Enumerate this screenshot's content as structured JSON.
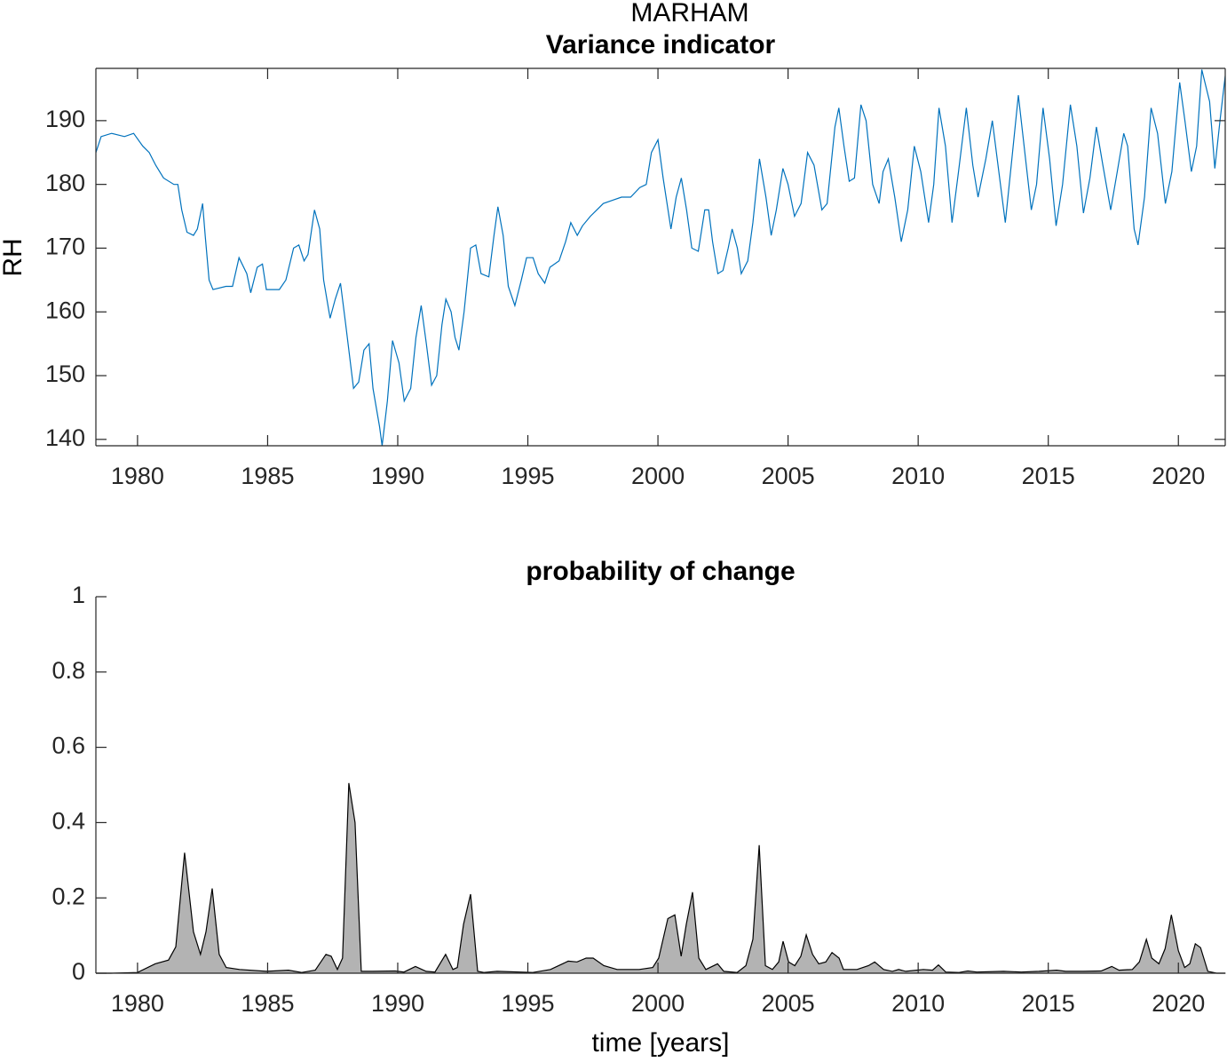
{
  "chart_data": [
    {
      "type": "line",
      "supertitle": "MARHAM",
      "title": "Variance indicator",
      "ylabel": "RH",
      "color": "#0072bd",
      "box": true,
      "xlim": [
        1978.4,
        2021.8
      ],
      "ylim": [
        139,
        198.2
      ],
      "xticks": [
        1980,
        1985,
        1990,
        1995,
        2000,
        2005,
        2010,
        2015,
        2020
      ],
      "yticks": [
        140,
        150,
        160,
        170,
        180,
        190
      ],
      "x": [
        1978.4,
        1978.6,
        1979.0,
        1979.5,
        1979.85,
        1980.2,
        1980.45,
        1980.7,
        1981.0,
        1981.4,
        1981.55,
        1981.7,
        1981.9,
        1982.15,
        1982.3,
        1982.5,
        1982.6,
        1982.75,
        1982.9,
        1983.4,
        1983.65,
        1983.9,
        1984.2,
        1984.35,
        1984.6,
        1984.8,
        1984.95,
        1985.45,
        1985.7,
        1986.0,
        1986.2,
        1986.4,
        1986.55,
        1986.8,
        1987.0,
        1987.15,
        1987.4,
        1987.6,
        1987.8,
        1988.0,
        1988.3,
        1988.5,
        1988.7,
        1988.9,
        1989.05,
        1989.3,
        1989.4,
        1989.6,
        1989.8,
        1990.05,
        1990.25,
        1990.5,
        1990.7,
        1990.9,
        1991.1,
        1991.3,
        1991.5,
        1991.7,
        1991.85,
        1992.05,
        1992.2,
        1992.35,
        1992.55,
        1992.8,
        1993.0,
        1993.2,
        1993.5,
        1993.7,
        1993.85,
        1994.05,
        1994.25,
        1994.5,
        1994.75,
        1994.95,
        1995.2,
        1995.4,
        1995.65,
        1995.85,
        1996.2,
        1996.45,
        1996.65,
        1996.9,
        1997.1,
        1997.4,
        1997.65,
        1997.9,
        1998.25,
        1998.6,
        1998.95,
        1999.3,
        1999.55,
        1999.75,
        2000.0,
        2000.2,
        2000.35,
        2000.5,
        2000.7,
        2000.9,
        2001.1,
        2001.3,
        2001.55,
        2001.8,
        2001.95,
        2002.1,
        2002.3,
        2002.5,
        2002.7,
        2002.85,
        2003.05,
        2003.2,
        2003.45,
        2003.65,
        2003.9,
        2004.15,
        2004.35,
        2004.55,
        2004.8,
        2005.0,
        2005.25,
        2005.5,
        2005.75,
        2006.0,
        2006.3,
        2006.5,
        2006.8,
        2006.95,
        2007.15,
        2007.35,
        2007.55,
        2007.8,
        2008.0,
        2008.25,
        2008.5,
        2008.65,
        2008.85,
        2009.1,
        2009.35,
        2009.6,
        2009.85,
        2010.1,
        2010.4,
        2010.6,
        2010.8,
        2011.05,
        2011.3,
        2011.55,
        2011.85,
        2012.1,
        2012.3,
        2012.6,
        2012.85,
        2013.1,
        2013.35,
        2013.6,
        2013.85,
        2014.1,
        2014.35,
        2014.55,
        2014.8,
        2015.05,
        2015.3,
        2015.55,
        2015.85,
        2016.1,
        2016.35,
        2016.6,
        2016.85,
        2017.1,
        2017.4,
        2017.65,
        2017.9,
        2018.05,
        2018.3,
        2018.45,
        2018.7,
        2018.95,
        2019.2,
        2019.5,
        2019.75,
        2020.05,
        2020.25,
        2020.5,
        2020.7,
        2020.9,
        2021.2,
        2021.4,
        2021.6,
        2021.8
      ],
      "values": [
        185,
        187.5,
        188,
        187.5,
        188,
        186,
        185,
        183,
        181,
        180,
        180,
        176,
        172.5,
        172,
        173,
        177,
        172,
        165,
        163.5,
        164,
        164,
        168.5,
        166,
        163,
        167,
        167.5,
        163.5,
        163.5,
        165,
        170,
        170.5,
        168,
        169,
        176,
        173,
        165,
        159,
        162,
        164.5,
        158,
        148,
        149,
        154,
        155,
        148,
        142,
        139,
        146,
        155.5,
        152,
        146,
        148,
        156,
        161,
        155,
        148.5,
        150,
        158,
        162,
        160,
        156,
        154,
        160,
        170,
        170.5,
        166,
        165.5,
        172,
        176.5,
        172,
        164,
        161,
        165,
        168.5,
        168.5,
        166,
        164.5,
        167,
        168,
        171,
        174,
        172,
        173.5,
        175,
        176,
        177,
        177.5,
        178,
        178,
        179.5,
        180,
        185,
        187,
        181,
        177,
        173,
        178,
        181,
        176,
        170,
        169.5,
        176,
        176,
        171,
        166,
        166.5,
        170,
        173,
        170,
        166,
        168,
        174,
        184,
        178,
        172,
        176,
        182.5,
        180,
        175,
        177,
        185,
        183,
        176,
        177,
        189,
        192,
        186,
        180.5,
        181,
        192.5,
        190,
        180,
        177,
        182,
        184,
        178,
        171,
        176,
        186,
        182,
        174,
        180,
        192,
        186,
        174,
        182,
        192,
        183,
        178,
        184,
        190,
        182,
        174,
        184,
        194,
        185,
        176,
        180,
        192,
        184,
        173.5,
        180,
        192.5,
        186,
        175.5,
        181,
        189,
        183,
        176,
        182,
        188,
        186,
        173,
        170.5,
        178,
        192,
        188,
        177,
        182,
        196,
        190,
        182,
        186,
        198,
        193,
        182.5,
        190,
        197
      ]
    },
    {
      "type": "area",
      "title": "probability of change",
      "xlabel": "time [years]",
      "color": "#b3b3b3",
      "edgecolor": "#000000",
      "box": false,
      "xlim": [
        1978.4,
        2021.8
      ],
      "ylim": [
        0,
        1
      ],
      "xticks": [
        1980,
        1985,
        1990,
        1995,
        2000,
        2005,
        2010,
        2015,
        2020
      ],
      "yticks": [
        0,
        0.2,
        0.4,
        0.6,
        0.8,
        1
      ],
      "x": [
        1978.4,
        1978.98,
        1980,
        1980.68,
        1981.19,
        1981.47,
        1981.81,
        1982.15,
        1982.42,
        1982.63,
        1982.87,
        1983.14,
        1983.41,
        1983.92,
        1984.95,
        1985.8,
        1986.31,
        1986.83,
        1987.24,
        1987.44,
        1987.68,
        1987.88,
        1988.12,
        1988.36,
        1988.6,
        1989.04,
        1989.9,
        1990.24,
        1990.68,
        1991.09,
        1991.43,
        1991.84,
        1992.12,
        1992.29,
        1992.53,
        1992.8,
        1993.07,
        1993.31,
        1993.82,
        1995.19,
        1995.87,
        1996.55,
        1996.89,
        1997.24,
        1997.51,
        1997.92,
        1998.43,
        1999.28,
        1999.8,
        2000.03,
        2000.38,
        2000.65,
        2000.89,
        2001.09,
        2001.33,
        2001.57,
        2001.84,
        2002.29,
        2002.53,
        2003.04,
        2003.38,
        2003.65,
        2003.89,
        2004.13,
        2004.4,
        2004.64,
        2004.81,
        2005.02,
        2005.26,
        2005.49,
        2005.7,
        2005.94,
        2006.18,
        2006.45,
        2006.69,
        2006.96,
        2007.13,
        2007.65,
        2008.09,
        2008.33,
        2008.67,
        2009.01,
        2009.25,
        2009.52,
        2010.2,
        2010.55,
        2010.78,
        2011.06,
        2011.57,
        2011.91,
        2012.25,
        2013.28,
        2013.96,
        2014.64,
        2015.32,
        2015.67,
        2016.35,
        2017.03,
        2017.44,
        2017.72,
        2018.23,
        2018.5,
        2018.77,
        2018.98,
        2019.25,
        2019.49,
        2019.73,
        2020.0,
        2020.24,
        2020.44,
        2020.65,
        2020.85,
        2021.13,
        2021.47,
        2021.81
      ],
      "values": [
        0,
        0,
        0.002,
        0.025,
        0.035,
        0.07,
        0.32,
        0.11,
        0.05,
        0.11,
        0.225,
        0.05,
        0.015,
        0.01,
        0.005,
        0.008,
        0.002,
        0.008,
        0.05,
        0.045,
        0.01,
        0.04,
        0.505,
        0.4,
        0.005,
        0.005,
        0.006,
        0.003,
        0.018,
        0.005,
        0.003,
        0.05,
        0.01,
        0.015,
        0.13,
        0.21,
        0.005,
        0.002,
        0.005,
        0.002,
        0.01,
        0.032,
        0.03,
        0.04,
        0.04,
        0.02,
        0.01,
        0.01,
        0.015,
        0.04,
        0.145,
        0.155,
        0.045,
        0.13,
        0.215,
        0.04,
        0.01,
        0.025,
        0.005,
        0.002,
        0.02,
        0.09,
        0.34,
        0.02,
        0.01,
        0.03,
        0.085,
        0.03,
        0.02,
        0.045,
        0.102,
        0.05,
        0.025,
        0.03,
        0.055,
        0.04,
        0.01,
        0.01,
        0.02,
        0.03,
        0.01,
        0.005,
        0.01,
        0.005,
        0.01,
        0.008,
        0.022,
        0.003,
        0.002,
        0.006,
        0.003,
        0.005,
        0.003,
        0.005,
        0.008,
        0.005,
        0.005,
        0.006,
        0.018,
        0.008,
        0.01,
        0.03,
        0.09,
        0.04,
        0.025,
        0.065,
        0.155,
        0.06,
        0.015,
        0.025,
        0.078,
        0.068,
        0.005,
        0,
        0
      ]
    }
  ]
}
